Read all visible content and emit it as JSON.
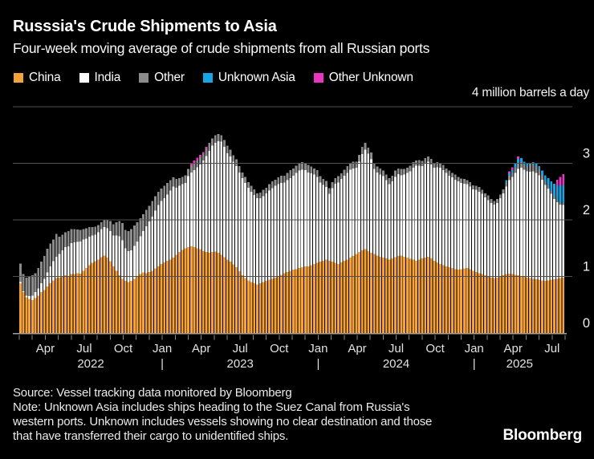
{
  "header": {
    "title": "Russsia's Crude Shipments to Asia",
    "subtitle": "Four-week moving average of crude shipments from all Russian ports"
  },
  "legend": [
    {
      "label": "China",
      "color": "#F5A23B"
    },
    {
      "label": "India",
      "color": "#FFFFFF"
    },
    {
      "label": "Other",
      "color": "#8B8B8B"
    },
    {
      "label": "Unknown Asia",
      "color": "#16A5E5"
    },
    {
      "label": "Other Unknown",
      "color": "#E935C1"
    }
  ],
  "footer": {
    "source": "Source: Vessel tracking data monitored by Bloomberg",
    "note_lines": [
      "Note: Unknown Asia includes ships heading to the Suez Canal from Russia's",
      "western ports. Unknown includes vessels showing no clear destination and those",
      "that have transferred their cargo to unidentified ships."
    ],
    "logo": "Bloomberg"
  },
  "chart_data": {
    "type": "bar",
    "stacked": true,
    "axis_note": "4 million barrels a day",
    "unit": "million barrels a day",
    "cadence": "weekly (4-week moving average)",
    "x_start": "2022-02",
    "x_end": "2025-08",
    "ylim": [
      0,
      4
    ],
    "yticks": [
      0,
      1,
      2,
      3
    ],
    "grid": true,
    "legend_position": "top",
    "x_axis": {
      "month_ticks": [
        {
          "label": "Apr",
          "m": 2
        },
        {
          "label": "Jul",
          "m": 5
        },
        {
          "label": "Oct",
          "m": 8
        },
        {
          "label": "Jan",
          "m": 11
        },
        {
          "label": "Apr",
          "m": 14
        },
        {
          "label": "Jul",
          "m": 17
        },
        {
          "label": "Oct",
          "m": 20
        },
        {
          "label": "Jan",
          "m": 23
        },
        {
          "label": "Apr",
          "m": 26
        },
        {
          "label": "Jul",
          "m": 29
        },
        {
          "label": "Oct",
          "m": 32
        },
        {
          "label": "Jan",
          "m": 35
        },
        {
          "label": "Apr",
          "m": 38
        },
        {
          "label": "Jul",
          "m": 41
        }
      ],
      "year_labels": [
        {
          "label": "2022",
          "m": 5.5
        },
        {
          "label": "|",
          "m": 11
        },
        {
          "label": "2023",
          "m": 17
        },
        {
          "label": "|",
          "m": 23
        },
        {
          "label": "2024",
          "m": 29
        },
        {
          "label": "|",
          "m": 35
        },
        {
          "label": "2025",
          "m": 38.5
        }
      ],
      "minor_tick_every_months": 1,
      "total_months": 42
    },
    "series": [
      {
        "name": "China",
        "key": "china",
        "color": "#F5A23B",
        "values": [
          0.88,
          0.72,
          0.63,
          0.6,
          0.58,
          0.62,
          0.66,
          0.72,
          0.76,
          0.82,
          0.88,
          0.93,
          0.97,
          0.98,
          1.0,
          1.02,
          1.0,
          1.04,
          1.04,
          1.06,
          1.05,
          1.1,
          1.15,
          1.2,
          1.24,
          1.27,
          1.3,
          1.34,
          1.37,
          1.33,
          1.27,
          1.18,
          1.1,
          1.02,
          0.96,
          0.92,
          0.9,
          0.92,
          0.96,
          1.0,
          1.04,
          1.07,
          1.06,
          1.08,
          1.1,
          1.14,
          1.18,
          1.22,
          1.25,
          1.28,
          1.3,
          1.33,
          1.38,
          1.43,
          1.47,
          1.5,
          1.52,
          1.53,
          1.52,
          1.5,
          1.48,
          1.45,
          1.43,
          1.42,
          1.43,
          1.44,
          1.42,
          1.38,
          1.34,
          1.3,
          1.26,
          1.21,
          1.16,
          1.09,
          1.02,
          0.97,
          0.93,
          0.9,
          0.88,
          0.86,
          0.88,
          0.9,
          0.92,
          0.94,
          0.96,
          0.98,
          1.0,
          1.03,
          1.06,
          1.08,
          1.1,
          1.12,
          1.13,
          1.15,
          1.16,
          1.18,
          1.18,
          1.2,
          1.22,
          1.24,
          1.26,
          1.28,
          1.3,
          1.28,
          1.26,
          1.24,
          1.22,
          1.25,
          1.28,
          1.3,
          1.33,
          1.36,
          1.4,
          1.43,
          1.46,
          1.48,
          1.45,
          1.42,
          1.4,
          1.37,
          1.35,
          1.33,
          1.32,
          1.3,
          1.32,
          1.34,
          1.36,
          1.37,
          1.35,
          1.33,
          1.31,
          1.3,
          1.28,
          1.3,
          1.32,
          1.33,
          1.35,
          1.32,
          1.28,
          1.25,
          1.22,
          1.2,
          1.18,
          1.16,
          1.15,
          1.13,
          1.12,
          1.13,
          1.14,
          1.15,
          1.13,
          1.1,
          1.08,
          1.06,
          1.04,
          1.02,
          1.0,
          0.98,
          0.97,
          0.98,
          1.0,
          1.02,
          1.04,
          1.05,
          1.04,
          1.03,
          1.02,
          1.0,
          0.99,
          0.98,
          0.97,
          0.96,
          0.95,
          0.94,
          0.93,
          0.92,
          0.93,
          0.94,
          0.95,
          0.96,
          0.97,
          0.98
        ]
      },
      {
        "name": "India",
        "key": "india",
        "color": "#FFFFFF",
        "values": [
          0.02,
          0.02,
          0.03,
          0.05,
          0.08,
          0.1,
          0.13,
          0.16,
          0.2,
          0.25,
          0.3,
          0.34,
          0.38,
          0.42,
          0.46,
          0.5,
          0.53,
          0.55,
          0.56,
          0.55,
          0.57,
          0.55,
          0.52,
          0.5,
          0.48,
          0.47,
          0.48,
          0.5,
          0.5,
          0.52,
          0.53,
          0.54,
          0.62,
          0.69,
          0.68,
          0.58,
          0.55,
          0.54,
          0.58,
          0.62,
          0.67,
          0.73,
          0.83,
          0.89,
          0.96,
          1.02,
          1.08,
          1.11,
          1.13,
          1.17,
          1.22,
          1.26,
          1.19,
          1.17,
          1.16,
          1.15,
          1.25,
          1.31,
          1.36,
          1.43,
          1.5,
          1.6,
          1.7,
          1.8,
          1.88,
          1.92,
          1.97,
          2.0,
          1.95,
          1.88,
          1.86,
          1.82,
          1.79,
          1.75,
          1.72,
          1.68,
          1.64,
          1.6,
          1.56,
          1.52,
          1.5,
          1.52,
          1.55,
          1.58,
          1.6,
          1.62,
          1.63,
          1.62,
          1.6,
          1.62,
          1.64,
          1.66,
          1.7,
          1.72,
          1.73,
          1.7,
          1.66,
          1.62,
          1.58,
          1.52,
          1.4,
          1.34,
          1.28,
          1.18,
          1.3,
          1.4,
          1.44,
          1.47,
          1.5,
          1.53,
          1.56,
          1.55,
          1.52,
          1.6,
          1.7,
          1.76,
          1.72,
          1.65,
          1.5,
          1.47,
          1.45,
          1.44,
          1.38,
          1.33,
          1.36,
          1.42,
          1.45,
          1.42,
          1.45,
          1.5,
          1.55,
          1.62,
          1.68,
          1.66,
          1.63,
          1.66,
          1.68,
          1.66,
          1.64,
          1.68,
          1.7,
          1.68,
          1.65,
          1.62,
          1.6,
          1.58,
          1.56,
          1.52,
          1.5,
          1.48,
          1.46,
          1.44,
          1.45,
          1.44,
          1.42,
          1.38,
          1.35,
          1.32,
          1.3,
          1.32,
          1.38,
          1.45,
          1.55,
          1.65,
          1.72,
          1.8,
          1.88,
          1.92,
          1.9,
          1.88,
          1.88,
          1.9,
          1.88,
          1.85,
          1.78,
          1.7,
          1.62,
          1.52,
          1.42,
          1.35,
          1.3,
          1.28
        ]
      },
      {
        "name": "Other",
        "key": "other",
        "color": "#8B8B8B",
        "values": [
          0.33,
          0.3,
          0.32,
          0.35,
          0.36,
          0.34,
          0.36,
          0.38,
          0.4,
          0.42,
          0.4,
          0.38,
          0.4,
          0.3,
          0.28,
          0.26,
          0.27,
          0.25,
          0.24,
          0.22,
          0.2,
          0.19,
          0.18,
          0.17,
          0.15,
          0.14,
          0.13,
          0.12,
          0.14,
          0.16,
          0.18,
          0.2,
          0.24,
          0.27,
          0.3,
          0.32,
          0.35,
          0.38,
          0.36,
          0.34,
          0.32,
          0.3,
          0.29,
          0.28,
          0.27,
          0.26,
          0.24,
          0.22,
          0.22,
          0.2,
          0.18,
          0.16,
          0.15,
          0.14,
          0.13,
          0.14,
          0.13,
          0.12,
          0.13,
          0.12,
          0.13,
          0.12,
          0.13,
          0.14,
          0.13,
          0.14,
          0.13,
          0.12,
          0.12,
          0.13,
          0.12,
          0.11,
          0.12,
          0.11,
          0.1,
          0.11,
          0.1,
          0.1,
          0.1,
          0.09,
          0.1,
          0.11,
          0.1,
          0.11,
          0.12,
          0.11,
          0.12,
          0.13,
          0.12,
          0.13,
          0.14,
          0.13,
          0.13,
          0.12,
          0.13,
          0.12,
          0.13,
          0.12,
          0.11,
          0.12,
          0.11,
          0.1,
          0.11,
          0.1,
          0.11,
          0.1,
          0.11,
          0.1,
          0.11,
          0.12,
          0.11,
          0.12,
          0.11,
          0.12,
          0.13,
          0.12,
          0.11,
          0.12,
          0.11,
          0.1,
          0.11,
          0.1,
          0.1,
          0.11,
          0.1,
          0.11,
          0.1,
          0.11,
          0.1,
          0.09,
          0.1,
          0.1,
          0.09,
          0.1,
          0.09,
          0.1,
          0.09,
          0.1,
          0.09,
          0.09,
          0.08,
          0.09,
          0.08,
          0.09,
          0.08,
          0.09,
          0.08,
          0.08,
          0.08,
          0.07,
          0.08,
          0.07,
          0.07,
          0.08,
          0.07,
          0.07,
          0.08,
          0.07,
          0.06,
          0.07,
          0.07,
          0.07,
          0.08,
          0.08,
          0.07,
          0.09,
          0.1,
          0.1,
          0.09,
          0.1,
          0.12,
          0.13,
          0.12,
          0.11,
          0.08,
          0.07,
          0.06,
          0.05,
          0.05,
          0.04,
          0.04,
          0.03
        ]
      },
      {
        "name": "Unknown Asia",
        "key": "unknown-asia",
        "color": "#16A5E5",
        "values": [
          0,
          0,
          0,
          0,
          0,
          0,
          0,
          0,
          0,
          0,
          0,
          0,
          0,
          0,
          0,
          0,
          0,
          0,
          0,
          0,
          0,
          0,
          0,
          0,
          0,
          0,
          0,
          0,
          0,
          0,
          0,
          0,
          0,
          0,
          0,
          0,
          0,
          0,
          0,
          0,
          0,
          0,
          0,
          0,
          0,
          0,
          0,
          0,
          0,
          0,
          0,
          0,
          0,
          0,
          0,
          0,
          0,
          0,
          0,
          0,
          0,
          0,
          0,
          0,
          0,
          0,
          0,
          0,
          0,
          0,
          0,
          0,
          0,
          0,
          0,
          0,
          0,
          0,
          0,
          0,
          0,
          0,
          0,
          0,
          0,
          0,
          0,
          0,
          0,
          0,
          0,
          0,
          0,
          0,
          0,
          0,
          0,
          0,
          0,
          0,
          0,
          0,
          0,
          0,
          0,
          0,
          0,
          0,
          0,
          0,
          0,
          0,
          0,
          0,
          0,
          0,
          0,
          0,
          0,
          0,
          0,
          0,
          0,
          0,
          0,
          0,
          0,
          0,
          0,
          0,
          0,
          0,
          0,
          0,
          0,
          0,
          0,
          0,
          0,
          0,
          0,
          0,
          0,
          0,
          0,
          0,
          0,
          0,
          0,
          0,
          0,
          0,
          0,
          0,
          0,
          0,
          0,
          0,
          0,
          0,
          0,
          0,
          0.03,
          0.04,
          0.05,
          0.07,
          0.08,
          0.07,
          0.05,
          0.04,
          0.03,
          0.03,
          0.04,
          0.05,
          0.08,
          0.1,
          0.13,
          0.17,
          0.22,
          0.26,
          0.3,
          0.32
        ]
      },
      {
        "name": "Other Unknown",
        "key": "other-unknown",
        "color": "#E935C1",
        "values": [
          0,
          0,
          0,
          0,
          0,
          0,
          0,
          0,
          0,
          0,
          0,
          0,
          0,
          0,
          0,
          0,
          0,
          0,
          0,
          0,
          0,
          0,
          0,
          0,
          0,
          0,
          0,
          0,
          0,
          0,
          0,
          0,
          0,
          0,
          0,
          0,
          0,
          0,
          0,
          0,
          0,
          0,
          0,
          0,
          0,
          0,
          0,
          0,
          0,
          0,
          0,
          0,
          0,
          0,
          0,
          0,
          0,
          0.04,
          0.04,
          0.05,
          0.04,
          0.03,
          0.03,
          0,
          0,
          0,
          0,
          0,
          0,
          0,
          0,
          0,
          0,
          0,
          0,
          0,
          0,
          0,
          0,
          0,
          0,
          0,
          0,
          0,
          0,
          0,
          0,
          0,
          0,
          0,
          0,
          0,
          0,
          0,
          0,
          0,
          0,
          0,
          0,
          0,
          0,
          0,
          0,
          0,
          0,
          0,
          0,
          0,
          0,
          0,
          0,
          0,
          0,
          0,
          0,
          0,
          0,
          0,
          0,
          0,
          0,
          0,
          0,
          0,
          0,
          0,
          0,
          0,
          0,
          0,
          0,
          0,
          0,
          0,
          0,
          0,
          0,
          0,
          0,
          0,
          0,
          0,
          0,
          0,
          0,
          0,
          0,
          0,
          0,
          0,
          0,
          0,
          0,
          0,
          0,
          0,
          0,
          0,
          0,
          0,
          0,
          0,
          0,
          0.04,
          0.05,
          0,
          0.04,
          0,
          0,
          0,
          0,
          0,
          0,
          0,
          0,
          0,
          0,
          0,
          0,
          0.1,
          0.15,
          0.2
        ]
      }
    ]
  }
}
